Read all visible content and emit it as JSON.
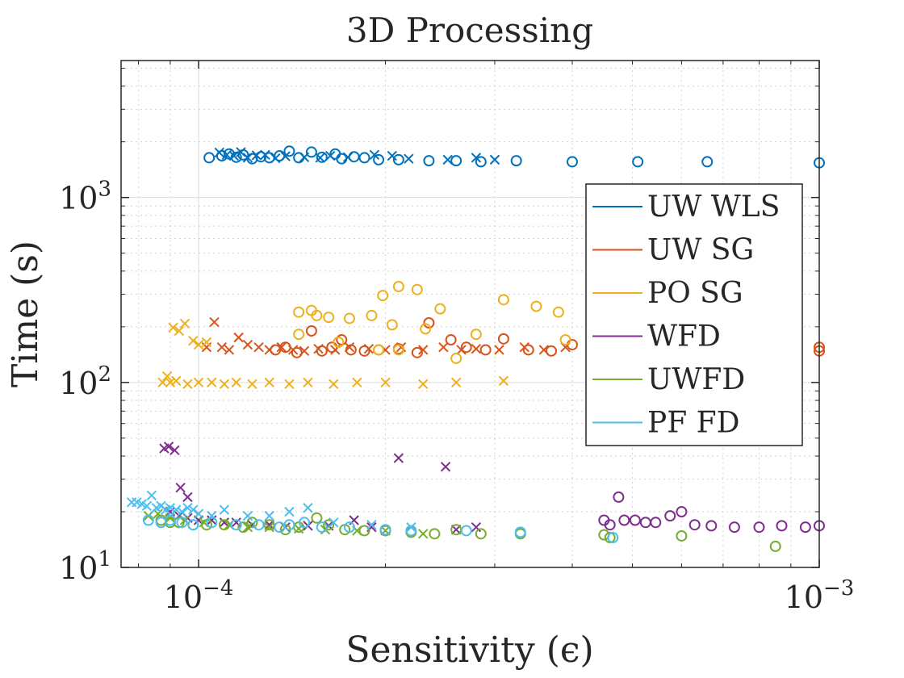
{
  "chart_data": {
    "type": "scatter",
    "title": "3D Processing",
    "xlabel": "Sensitivity (ϵ)",
    "ylabel": "Time (s)",
    "xscale": "log",
    "yscale": "log",
    "xlim": [
      7.5e-05,
      0.001
    ],
    "ylim": [
      10,
      5500
    ],
    "x_ticks": [
      {
        "value": 0.0001,
        "base": "10",
        "exp": "−4"
      },
      {
        "value": 0.001,
        "base": "10",
        "exp": "−3"
      }
    ],
    "y_ticks": [
      {
        "value": 10,
        "base": "10",
        "exp": "1"
      },
      {
        "value": 100,
        "base": "10",
        "exp": "2"
      },
      {
        "value": 1000,
        "base": "10",
        "exp": "3"
      }
    ],
    "grid": true,
    "legend_position": "right",
    "markers_note": "each series plotted with both circle and x markers",
    "series": [
      {
        "name": "UW WLS",
        "color": "#0072BD",
        "circles": [
          [
            0.000104,
            1640
          ],
          [
            0.000109,
            1680
          ],
          [
            0.000112,
            1720
          ],
          [
            0.000115,
            1650
          ],
          [
            0.000118,
            1700
          ],
          [
            0.000122,
            1620
          ],
          [
            0.000126,
            1660
          ],
          [
            0.00013,
            1640
          ],
          [
            0.000135,
            1680
          ],
          [
            0.00014,
            1780
          ],
          [
            0.000145,
            1640
          ],
          [
            0.000152,
            1760
          ],
          [
            0.000158,
            1650
          ],
          [
            0.000166,
            1720
          ],
          [
            0.00017,
            1620
          ],
          [
            0.000178,
            1660
          ],
          [
            0.000185,
            1640
          ],
          [
            0.000195,
            1600
          ],
          [
            0.00021,
            1600
          ],
          [
            0.000235,
            1580
          ],
          [
            0.00026,
            1580
          ],
          [
            0.000285,
            1560
          ],
          [
            0.000325,
            1580
          ],
          [
            0.0004,
            1560
          ],
          [
            0.00051,
            1560
          ],
          [
            0.00066,
            1560
          ],
          [
            0.001,
            1540
          ]
        ],
        "crosses": [
          [
            0.000108,
            1750
          ],
          [
            0.000111,
            1700
          ],
          [
            0.000114,
            1680
          ],
          [
            0.000117,
            1760
          ],
          [
            0.00012,
            1640
          ],
          [
            0.000124,
            1690
          ],
          [
            0.000128,
            1700
          ],
          [
            0.000133,
            1630
          ],
          [
            0.000138,
            1670
          ],
          [
            0.000148,
            1650
          ],
          [
            0.000157,
            1640
          ],
          [
            0.000163,
            1680
          ],
          [
            0.000174,
            1650
          ],
          [
            0.000192,
            1700
          ],
          [
            0.000205,
            1680
          ],
          [
            0.000218,
            1620
          ],
          [
            0.000252,
            1600
          ],
          [
            0.00028,
            1640
          ],
          [
            0.0003,
            1600
          ]
        ]
      },
      {
        "name": "UW SG",
        "color": "#D95319",
        "circles": [
          [
            0.000133,
            150
          ],
          [
            0.000138,
            155
          ],
          [
            0.000144,
            145
          ],
          [
            0.000152,
            190
          ],
          [
            0.000158,
            148
          ],
          [
            0.000164,
            155
          ],
          [
            0.00017,
            170
          ],
          [
            0.000176,
            150
          ],
          [
            0.000185,
            148
          ],
          [
            0.000195,
            150
          ],
          [
            0.00021,
            152
          ],
          [
            0.000225,
            145
          ],
          [
            0.000235,
            210
          ],
          [
            0.000255,
            170
          ],
          [
            0.00027,
            155
          ],
          [
            0.00029,
            150
          ],
          [
            0.00031,
            172
          ],
          [
            0.00034,
            150
          ],
          [
            0.00037,
            148
          ],
          [
            0.0004,
            160
          ],
          [
            0.001,
            155
          ],
          [
            0.001,
            148
          ]
        ],
        "crosses": [
          [
            0.000103,
            155
          ],
          [
            0.000106,
            212
          ],
          [
            0.000109,
            155
          ],
          [
            0.000112,
            150
          ],
          [
            0.000116,
            175
          ],
          [
            0.00012,
            160
          ],
          [
            0.000125,
            155
          ],
          [
            0.00013,
            150
          ],
          [
            0.000136,
            155
          ],
          [
            0.000142,
            150
          ],
          [
            0.000148,
            148
          ],
          [
            0.000156,
            152
          ],
          [
            0.000166,
            150
          ],
          [
            0.000175,
            155
          ],
          [
            0.000188,
            152
          ],
          [
            0.0002,
            150
          ],
          [
            0.000212,
            155
          ],
          [
            0.00023,
            150
          ],
          [
            0.000248,
            155
          ],
          [
            0.000265,
            150
          ],
          [
            0.00028,
            152
          ],
          [
            0.000305,
            150
          ],
          [
            0.000335,
            155
          ],
          [
            0.00036,
            150
          ],
          [
            0.00039,
            155
          ]
        ]
      },
      {
        "name": "PO SG",
        "color": "#EDB120",
        "circles": [
          [
            0.000145,
            240
          ],
          [
            0.000152,
            245
          ],
          [
            0.000155,
            230
          ],
          [
            0.000162,
            225
          ],
          [
            0.000175,
            222
          ],
          [
            0.00019,
            230
          ],
          [
            0.000198,
            295
          ],
          [
            0.000205,
            205
          ],
          [
            0.00021,
            330
          ],
          [
            0.000225,
            318
          ],
          [
            0.000232,
            195
          ],
          [
            0.000245,
            250
          ],
          [
            0.00026,
            135
          ],
          [
            0.00028,
            182
          ],
          [
            0.00031,
            280
          ],
          [
            0.00035,
            258
          ],
          [
            0.00038,
            240
          ],
          [
            0.00039,
            170
          ],
          [
            0.000145,
            182
          ],
          [
            0.000168,
            165
          ],
          [
            0.000195,
            150
          ],
          [
            0.00021,
            150
          ]
        ],
        "crosses": [
          [
            8.75e-05,
            100
          ],
          [
            8.9e-05,
            108
          ],
          [
            9.1e-05,
            198
          ],
          [
            9.3e-05,
            190
          ],
          [
            9.5e-05,
            208
          ],
          [
            9.8e-05,
            168
          ],
          [
            0.0001,
            160
          ],
          [
            0.000103,
            165
          ],
          [
            9e-05,
            100
          ],
          [
            9.2e-05,
            102
          ],
          [
            9.6e-05,
            98
          ],
          [
            0.0001,
            100
          ],
          [
            0.000105,
            100
          ],
          [
            0.00011,
            98
          ],
          [
            0.000115,
            100
          ],
          [
            0.000122,
            98
          ],
          [
            0.00013,
            100
          ],
          [
            0.00014,
            98
          ],
          [
            0.00015,
            100
          ],
          [
            0.000165,
            98
          ],
          [
            0.00018,
            100
          ],
          [
            0.0002,
            100
          ],
          [
            0.00023,
            98
          ],
          [
            0.00026,
            100
          ],
          [
            0.00031,
            102
          ]
        ]
      },
      {
        "name": "WFD",
        "color": "#7E2F8E",
        "circles": [
          [
            0.00045,
            18
          ],
          [
            0.00046,
            17
          ],
          [
            0.000475,
            24
          ],
          [
            0.000485,
            18
          ],
          [
            0.000505,
            18
          ],
          [
            0.000525,
            17.5
          ],
          [
            0.000545,
            17.5
          ],
          [
            0.000575,
            19
          ],
          [
            0.0006,
            20
          ],
          [
            0.00063,
            17
          ],
          [
            0.00067,
            16.8
          ],
          [
            0.00073,
            16.5
          ],
          [
            0.0008,
            16.5
          ],
          [
            0.00087,
            16.8
          ],
          [
            0.00095,
            16.5
          ],
          [
            0.001,
            16.8
          ]
        ],
        "crosses": [
          [
            8.8e-05,
            44
          ],
          [
            8.95e-05,
            45
          ],
          [
            9.15e-05,
            43
          ],
          [
            9.35e-05,
            27
          ],
          [
            9.6e-05,
            24
          ],
          [
            9e-05,
            20
          ],
          [
            9.3e-05,
            19
          ],
          [
            9.6e-05,
            18.5
          ],
          [
            0.0001,
            18
          ],
          [
            0.000105,
            18
          ],
          [
            0.00011,
            17.5
          ],
          [
            0.000115,
            17.5
          ],
          [
            0.000122,
            17
          ],
          [
            0.00013,
            17
          ],
          [
            0.000138,
            16.5
          ],
          [
            0.00015,
            16.8
          ],
          [
            0.000162,
            16.8
          ],
          [
            0.000178,
            18
          ],
          [
            0.00019,
            16.5
          ],
          [
            0.00021,
            39
          ],
          [
            0.00025,
            35
          ],
          [
            0.00026,
            16
          ],
          [
            0.00028,
            16.5
          ]
        ]
      },
      {
        "name": "UWFD",
        "color": "#77AC30",
        "circles": [
          [
            8.7e-05,
            18
          ],
          [
            9e-05,
            17.5
          ],
          [
            9.3e-05,
            17.5
          ],
          [
            9.8e-05,
            17
          ],
          [
            0.000103,
            17
          ],
          [
            0.00011,
            17
          ],
          [
            0.000118,
            16.5
          ],
          [
            0.000122,
            17.5
          ],
          [
            0.00013,
            17
          ],
          [
            0.000138,
            16
          ],
          [
            0.000145,
            16.5
          ],
          [
            0.000155,
            18.5
          ],
          [
            0.000162,
            17
          ],
          [
            0.000172,
            16
          ],
          [
            0.000185,
            15.8
          ],
          [
            0.0002,
            15.8
          ],
          [
            0.00022,
            15.5
          ],
          [
            0.00024,
            15.2
          ],
          [
            0.00026,
            16
          ],
          [
            0.000285,
            15.2
          ],
          [
            0.00033,
            15.2
          ],
          [
            0.00045,
            15
          ],
          [
            0.00046,
            14.5
          ],
          [
            0.0006,
            14.8
          ],
          [
            0.00085,
            13
          ]
        ],
        "crosses": [
          [
            8.3e-05,
            19
          ],
          [
            8.6e-05,
            19.5
          ],
          [
            9e-05,
            18.5
          ],
          [
            9.5e-05,
            18
          ],
          [
            0.000102,
            17.5
          ],
          [
            0.000112,
            17
          ],
          [
            0.00012,
            16.5
          ],
          [
            0.00013,
            16.5
          ],
          [
            0.000145,
            16.2
          ],
          [
            0.00016,
            16
          ],
          [
            0.00018,
            15.8
          ],
          [
            0.0002,
            15.8
          ],
          [
            0.00023,
            15.2
          ]
        ]
      },
      {
        "name": "PF FD",
        "color": "#4DBEEE",
        "circles": [
          [
            8.3e-05,
            18
          ],
          [
            8.7e-05,
            17.5
          ],
          [
            9e-05,
            18
          ],
          [
            9.4e-05,
            17.5
          ],
          [
            9.8e-05,
            17
          ],
          [
            0.000105,
            17.5
          ],
          [
            0.000115,
            17
          ],
          [
            0.000125,
            17
          ],
          [
            0.000135,
            16.5
          ],
          [
            0.00014,
            17
          ],
          [
            0.000148,
            17.5
          ],
          [
            0.000158,
            16.5
          ],
          [
            0.000175,
            16.5
          ],
          [
            0.0002,
            16
          ],
          [
            0.00022,
            15.8
          ],
          [
            0.00027,
            15.8
          ],
          [
            0.00033,
            15.5
          ],
          [
            0.000465,
            14.5
          ]
        ],
        "crosses": [
          [
            7.8e-05,
            22.5
          ],
          [
            7.95e-05,
            22.5
          ],
          [
            8.1e-05,
            22
          ],
          [
            8.25e-05,
            21.5
          ],
          [
            8.4e-05,
            24.5
          ],
          [
            8.55e-05,
            21
          ],
          [
            8.7e-05,
            21.5
          ],
          [
            8.85e-05,
            20.5
          ],
          [
            9e-05,
            21
          ],
          [
            9.2e-05,
            20.5
          ],
          [
            9.4e-05,
            20
          ],
          [
            9.6e-05,
            21
          ],
          [
            9.8e-05,
            20.5
          ],
          [
            0.0001,
            19.5
          ],
          [
            0.000105,
            19
          ],
          [
            0.00011,
            20.5
          ],
          [
            0.00012,
            19
          ],
          [
            0.00013,
            19
          ],
          [
            0.00014,
            20
          ],
          [
            0.00015,
            21
          ],
          [
            0.000165,
            17.5
          ],
          [
            0.00019,
            17
          ],
          [
            0.00022,
            16.5
          ]
        ]
      }
    ]
  }
}
